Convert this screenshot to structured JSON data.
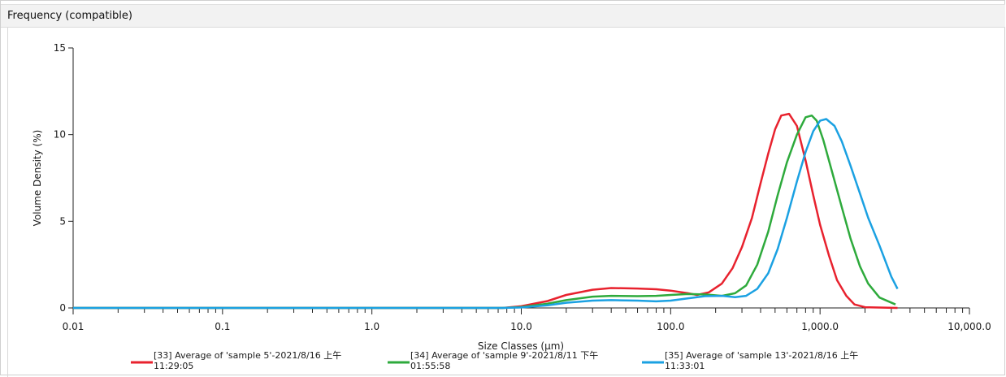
{
  "panel": {
    "title": "Frequency (compatible)"
  },
  "chart_data": {
    "type": "line",
    "xlabel": "Size Classes (μm)",
    "ylabel": "Volume Density (%)",
    "xscale": "log",
    "xlim": [
      0.01,
      10000
    ],
    "ylim": [
      0,
      15
    ],
    "x_ticks": [
      0.01,
      0.1,
      1.0,
      10.0,
      100.0,
      1000.0,
      10000.0
    ],
    "x_tick_labels": [
      "0.01",
      "0.1",
      "1.0",
      "10.0",
      "100.0",
      "1,000.0",
      "10,000.0"
    ],
    "y_ticks": [
      0,
      5,
      10,
      15
    ],
    "y_tick_labels": [
      "0",
      "5",
      "10",
      "15"
    ],
    "legend_position": "bottom",
    "series": [
      {
        "name": "[33] Average of 'sample 5'-2021/8/16 上午 11:29:05",
        "legend_lines": [
          "[33] Average of 'sample 5'-2021/8/16 上午",
          "11:29:05"
        ],
        "color": "#e8222e",
        "points": [
          [
            0.01,
            0
          ],
          [
            7.5,
            0
          ],
          [
            10,
            0.1
          ],
          [
            15,
            0.4
          ],
          [
            20,
            0.75
          ],
          [
            30,
            1.05
          ],
          [
            40,
            1.15
          ],
          [
            60,
            1.12
          ],
          [
            80,
            1.08
          ],
          [
            100,
            1.0
          ],
          [
            130,
            0.85
          ],
          [
            150,
            0.75
          ],
          [
            180,
            0.9
          ],
          [
            220,
            1.4
          ],
          [
            260,
            2.3
          ],
          [
            300,
            3.5
          ],
          [
            350,
            5.2
          ],
          [
            400,
            7.2
          ],
          [
            450,
            8.9
          ],
          [
            500,
            10.3
          ],
          [
            550,
            11.1
          ],
          [
            620,
            11.2
          ],
          [
            700,
            10.5
          ],
          [
            800,
            8.5
          ],
          [
            900,
            6.5
          ],
          [
            1000,
            4.8
          ],
          [
            1150,
            3.0
          ],
          [
            1300,
            1.6
          ],
          [
            1500,
            0.7
          ],
          [
            1700,
            0.2
          ],
          [
            2000,
            0.04
          ],
          [
            3300,
            0
          ]
        ]
      },
      {
        "name": "[34] Average of 'sample 9'-2021/8/11 下午 01:55:58",
        "legend_lines": [
          "[34] Average of 'sample 9'-2021/8/11 下午",
          "01:55:58"
        ],
        "color": "#2eaa3c",
        "points": [
          [
            0.01,
            0
          ],
          [
            7.5,
            0
          ],
          [
            10,
            0.05
          ],
          [
            15,
            0.25
          ],
          [
            20,
            0.45
          ],
          [
            30,
            0.65
          ],
          [
            40,
            0.7
          ],
          [
            60,
            0.68
          ],
          [
            80,
            0.7
          ],
          [
            100,
            0.75
          ],
          [
            130,
            0.8
          ],
          [
            170,
            0.78
          ],
          [
            220,
            0.7
          ],
          [
            270,
            0.85
          ],
          [
            320,
            1.3
          ],
          [
            380,
            2.5
          ],
          [
            450,
            4.4
          ],
          [
            520,
            6.5
          ],
          [
            600,
            8.4
          ],
          [
            700,
            10.0
          ],
          [
            800,
            11.0
          ],
          [
            880,
            11.1
          ],
          [
            950,
            10.8
          ],
          [
            1050,
            9.7
          ],
          [
            1200,
            7.9
          ],
          [
            1400,
            5.8
          ],
          [
            1600,
            4.0
          ],
          [
            1850,
            2.4
          ],
          [
            2100,
            1.4
          ],
          [
            2500,
            0.6
          ],
          [
            3200,
            0.2
          ]
        ]
      },
      {
        "name": "[35] Average of 'sample 13'-2021/8/16 上午 11:33:01",
        "legend_lines": [
          "[35] Average of 'sample 13'-2021/8/16 上午",
          "11:33:01"
        ],
        "color": "#1ba1e2",
        "points": [
          [
            0.01,
            0
          ],
          [
            7.5,
            0
          ],
          [
            10,
            0.03
          ],
          [
            15,
            0.15
          ],
          [
            20,
            0.3
          ],
          [
            30,
            0.42
          ],
          [
            40,
            0.45
          ],
          [
            60,
            0.42
          ],
          [
            80,
            0.38
          ],
          [
            100,
            0.42
          ],
          [
            130,
            0.55
          ],
          [
            170,
            0.68
          ],
          [
            220,
            0.7
          ],
          [
            270,
            0.62
          ],
          [
            320,
            0.7
          ],
          [
            380,
            1.1
          ],
          [
            450,
            2.0
          ],
          [
            520,
            3.4
          ],
          [
            600,
            5.2
          ],
          [
            700,
            7.3
          ],
          [
            800,
            9.0
          ],
          [
            900,
            10.2
          ],
          [
            1000,
            10.8
          ],
          [
            1100,
            10.9
          ],
          [
            1250,
            10.5
          ],
          [
            1400,
            9.6
          ],
          [
            1600,
            8.2
          ],
          [
            1850,
            6.6
          ],
          [
            2100,
            5.2
          ],
          [
            2500,
            3.6
          ],
          [
            3000,
            1.8
          ],
          [
            3300,
            1.1
          ]
        ]
      }
    ]
  }
}
